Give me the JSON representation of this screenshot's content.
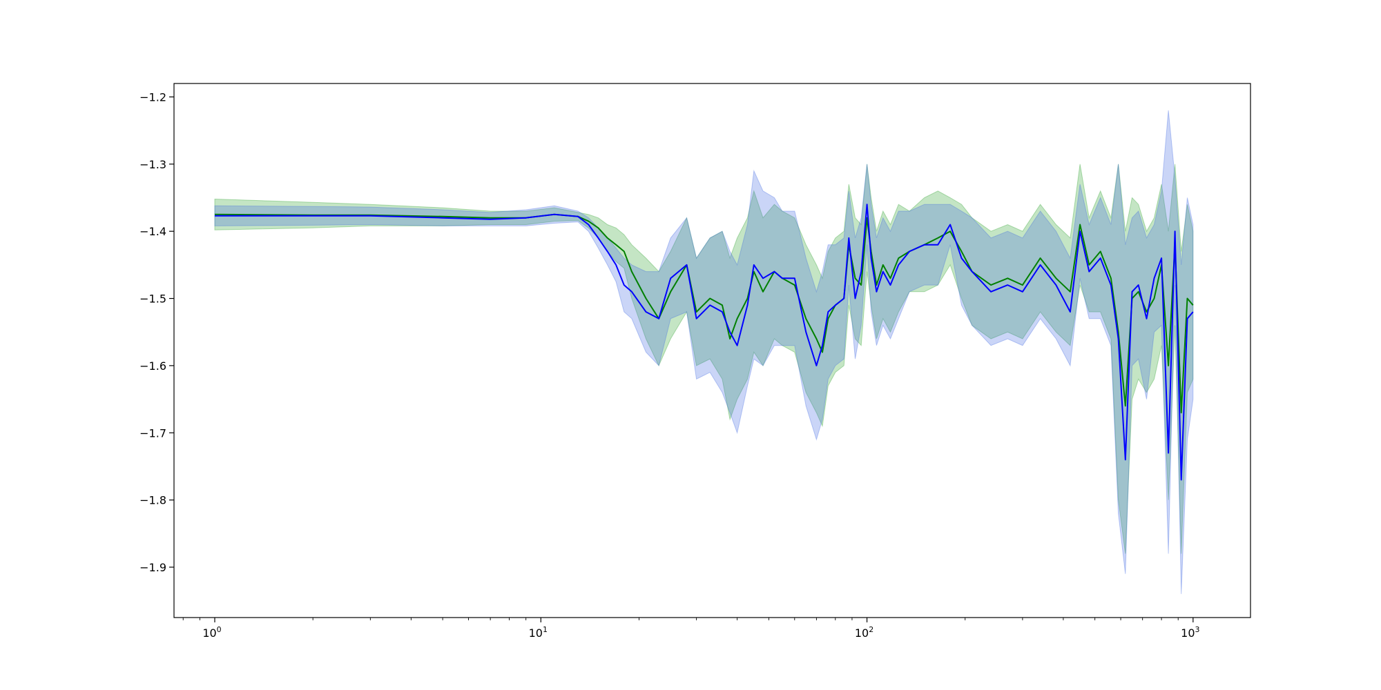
{
  "chart_data": {
    "type": "line",
    "title": "",
    "xlabel": "",
    "ylabel": "",
    "xscale": "log",
    "xlim": [
      0.75,
      1500
    ],
    "ylim": [
      -1.975,
      -1.18
    ],
    "grid": false,
    "legend": "none",
    "x_ticks": [
      {
        "value": 1,
        "label": "10",
        "exp": "0"
      },
      {
        "value": 10,
        "label": "10",
        "exp": "1"
      },
      {
        "value": 100,
        "label": "10",
        "exp": "2"
      },
      {
        "value": 1000,
        "label": "10",
        "exp": "3"
      }
    ],
    "y_ticks": [
      {
        "value": -1.2,
        "label": "−1.2"
      },
      {
        "value": -1.3,
        "label": "−1.3"
      },
      {
        "value": -1.4,
        "label": "−1.4"
      },
      {
        "value": -1.5,
        "label": "−1.5"
      },
      {
        "value": -1.6,
        "label": "−1.6"
      },
      {
        "value": -1.7,
        "label": "−1.7"
      },
      {
        "value": -1.8,
        "label": "−1.8"
      },
      {
        "value": -1.9,
        "label": "−1.9"
      }
    ],
    "series": [
      {
        "color": "#008000",
        "band_color": "#2ca02c",
        "x": [
          1,
          2,
          3,
          5,
          7,
          9,
          11,
          13,
          14,
          15,
          16,
          17,
          18,
          19,
          21,
          23,
          25,
          28,
          30,
          33,
          36,
          38,
          40,
          43,
          45,
          48,
          52,
          55,
          60,
          65,
          70,
          73,
          76,
          80,
          85,
          88,
          92,
          96,
          100,
          103,
          107,
          112,
          118,
          125,
          135,
          150,
          165,
          180,
          195,
          210,
          240,
          270,
          300,
          340,
          380,
          420,
          450,
          480,
          520,
          560,
          590,
          620,
          650,
          680,
          720,
          760,
          800,
          840,
          880,
          920,
          960,
          1000
        ],
        "y": [
          -1.375,
          -1.376,
          -1.376,
          -1.378,
          -1.38,
          -1.38,
          -1.375,
          -1.378,
          -1.385,
          -1.395,
          -1.41,
          -1.42,
          -1.43,
          -1.46,
          -1.5,
          -1.53,
          -1.49,
          -1.45,
          -1.52,
          -1.5,
          -1.51,
          -1.56,
          -1.53,
          -1.5,
          -1.46,
          -1.49,
          -1.46,
          -1.47,
          -1.48,
          -1.53,
          -1.56,
          -1.58,
          -1.53,
          -1.51,
          -1.5,
          -1.42,
          -1.47,
          -1.48,
          -1.38,
          -1.43,
          -1.48,
          -1.45,
          -1.47,
          -1.44,
          -1.43,
          -1.42,
          -1.41,
          -1.4,
          -1.43,
          -1.46,
          -1.48,
          -1.47,
          -1.48,
          -1.44,
          -1.47,
          -1.49,
          -1.39,
          -1.45,
          -1.43,
          -1.47,
          -1.55,
          -1.66,
          -1.5,
          -1.49,
          -1.52,
          -1.5,
          -1.45,
          -1.6,
          -1.42,
          -1.67,
          -1.5,
          -1.51
        ],
        "upper": [
          -1.352,
          -1.357,
          -1.36,
          -1.365,
          -1.37,
          -1.37,
          -1.365,
          -1.372,
          -1.375,
          -1.38,
          -1.39,
          -1.395,
          -1.405,
          -1.42,
          -1.44,
          -1.46,
          -1.43,
          -1.38,
          -1.44,
          -1.41,
          -1.4,
          -1.44,
          -1.41,
          -1.38,
          -1.34,
          -1.38,
          -1.36,
          -1.37,
          -1.38,
          -1.42,
          -1.45,
          -1.47,
          -1.43,
          -1.41,
          -1.4,
          -1.33,
          -1.38,
          -1.39,
          -1.3,
          -1.35,
          -1.4,
          -1.37,
          -1.39,
          -1.36,
          -1.37,
          -1.35,
          -1.34,
          -1.35,
          -1.36,
          -1.38,
          -1.4,
          -1.39,
          -1.4,
          -1.36,
          -1.39,
          -1.41,
          -1.3,
          -1.38,
          -1.34,
          -1.38,
          -1.3,
          -1.4,
          -1.35,
          -1.36,
          -1.4,
          -1.38,
          -1.33,
          -1.4,
          -1.3,
          -1.43,
          -1.36,
          -1.4
        ],
        "lower": [
          -1.398,
          -1.395,
          -1.392,
          -1.392,
          -1.39,
          -1.39,
          -1.385,
          -1.384,
          -1.395,
          -1.41,
          -1.43,
          -1.445,
          -1.455,
          -1.5,
          -1.56,
          -1.6,
          -1.56,
          -1.52,
          -1.6,
          -1.59,
          -1.62,
          -1.68,
          -1.65,
          -1.62,
          -1.58,
          -1.6,
          -1.56,
          -1.57,
          -1.58,
          -1.64,
          -1.67,
          -1.69,
          -1.63,
          -1.61,
          -1.6,
          -1.51,
          -1.56,
          -1.57,
          -1.46,
          -1.51,
          -1.56,
          -1.53,
          -1.55,
          -1.52,
          -1.49,
          -1.49,
          -1.48,
          -1.45,
          -1.5,
          -1.54,
          -1.56,
          -1.55,
          -1.56,
          -1.52,
          -1.55,
          -1.57,
          -1.48,
          -1.52,
          -1.52,
          -1.56,
          -1.8,
          -1.88,
          -1.65,
          -1.62,
          -1.64,
          -1.62,
          -1.57,
          -1.8,
          -1.54,
          -1.88,
          -1.64,
          -1.62
        ]
      },
      {
        "color": "#0000ff",
        "band_color": "#4169e1",
        "x": [
          1,
          2,
          3,
          5,
          7,
          9,
          11,
          13,
          14,
          15,
          16,
          17,
          18,
          19,
          21,
          23,
          25,
          28,
          30,
          33,
          36,
          38,
          40,
          43,
          45,
          48,
          52,
          55,
          60,
          65,
          70,
          73,
          76,
          80,
          85,
          88,
          92,
          96,
          100,
          103,
          107,
          112,
          118,
          125,
          135,
          150,
          165,
          180,
          195,
          210,
          240,
          270,
          300,
          340,
          380,
          420,
          450,
          480,
          520,
          560,
          590,
          620,
          650,
          680,
          720,
          760,
          800,
          840,
          880,
          920,
          960,
          1000
        ],
        "y": [
          -1.377,
          -1.377,
          -1.377,
          -1.38,
          -1.382,
          -1.38,
          -1.375,
          -1.378,
          -1.39,
          -1.41,
          -1.43,
          -1.45,
          -1.48,
          -1.49,
          -1.52,
          -1.53,
          -1.47,
          -1.45,
          -1.53,
          -1.51,
          -1.52,
          -1.55,
          -1.57,
          -1.51,
          -1.45,
          -1.47,
          -1.46,
          -1.47,
          -1.47,
          -1.55,
          -1.6,
          -1.57,
          -1.52,
          -1.51,
          -1.5,
          -1.41,
          -1.5,
          -1.46,
          -1.36,
          -1.44,
          -1.49,
          -1.46,
          -1.48,
          -1.45,
          -1.43,
          -1.42,
          -1.42,
          -1.39,
          -1.44,
          -1.46,
          -1.49,
          -1.48,
          -1.49,
          -1.45,
          -1.48,
          -1.52,
          -1.4,
          -1.46,
          -1.44,
          -1.48,
          -1.56,
          -1.74,
          -1.49,
          -1.48,
          -1.53,
          -1.47,
          -1.44,
          -1.73,
          -1.4,
          -1.77,
          -1.53,
          -1.52
        ],
        "upper": [
          -1.362,
          -1.363,
          -1.364,
          -1.368,
          -1.372,
          -1.368,
          -1.362,
          -1.37,
          -1.38,
          -1.395,
          -1.41,
          -1.425,
          -1.44,
          -1.45,
          -1.46,
          -1.46,
          -1.41,
          -1.38,
          -1.44,
          -1.41,
          -1.4,
          -1.43,
          -1.45,
          -1.39,
          -1.31,
          -1.34,
          -1.35,
          -1.37,
          -1.37,
          -1.44,
          -1.49,
          -1.46,
          -1.42,
          -1.42,
          -1.41,
          -1.34,
          -1.41,
          -1.38,
          -1.3,
          -1.36,
          -1.41,
          -1.38,
          -1.4,
          -1.37,
          -1.37,
          -1.36,
          -1.36,
          -1.36,
          -1.37,
          -1.38,
          -1.41,
          -1.4,
          -1.41,
          -1.37,
          -1.4,
          -1.44,
          -1.33,
          -1.39,
          -1.35,
          -1.39,
          -1.3,
          -1.42,
          -1.38,
          -1.37,
          -1.41,
          -1.39,
          -1.34,
          -1.22,
          -1.32,
          -1.45,
          -1.35,
          -1.39
        ],
        "lower": [
          -1.392,
          -1.391,
          -1.39,
          -1.392,
          -1.392,
          -1.392,
          -1.388,
          -1.386,
          -1.4,
          -1.425,
          -1.45,
          -1.475,
          -1.52,
          -1.53,
          -1.58,
          -1.6,
          -1.53,
          -1.52,
          -1.62,
          -1.61,
          -1.64,
          -1.67,
          -1.7,
          -1.63,
          -1.59,
          -1.6,
          -1.57,
          -1.57,
          -1.57,
          -1.66,
          -1.71,
          -1.68,
          -1.62,
          -1.6,
          -1.59,
          -1.48,
          -1.59,
          -1.54,
          -1.42,
          -1.52,
          -1.57,
          -1.54,
          -1.56,
          -1.53,
          -1.49,
          -1.48,
          -1.48,
          -1.42,
          -1.51,
          -1.54,
          -1.57,
          -1.56,
          -1.57,
          -1.53,
          -1.56,
          -1.6,
          -1.47,
          -1.53,
          -1.53,
          -1.57,
          -1.82,
          -1.91,
          -1.6,
          -1.59,
          -1.65,
          -1.55,
          -1.54,
          -1.88,
          -1.48,
          -1.94,
          -1.71,
          -1.65
        ]
      }
    ]
  }
}
